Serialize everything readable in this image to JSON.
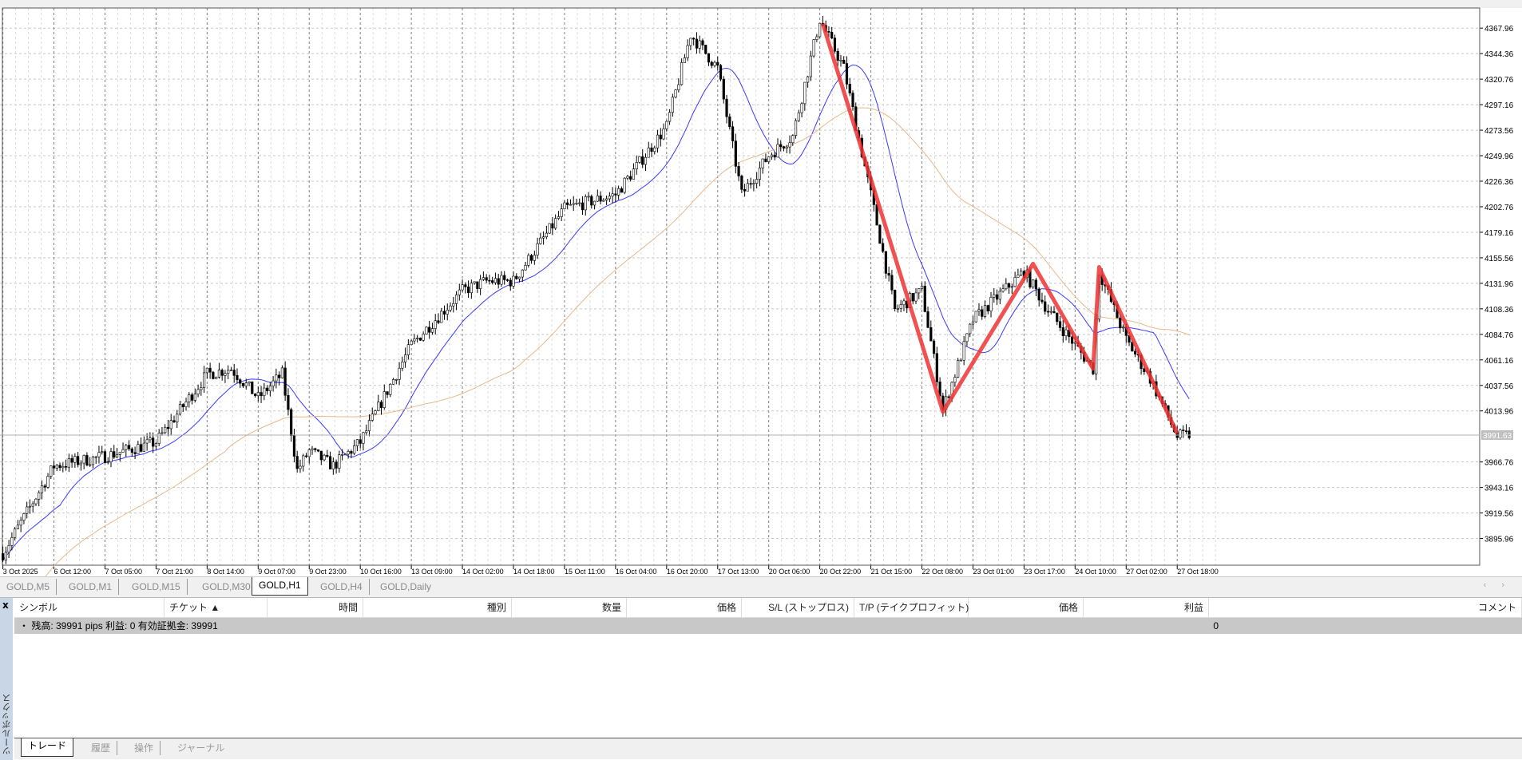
{
  "chart_tabs": [
    "GOLD,M5",
    "GOLD,M1",
    "GOLD,M15",
    "GOLD,M30",
    "GOLD,H1",
    "GOLD,H4",
    "GOLD,Daily"
  ],
  "active_chart_tab": "GOLD,H1",
  "tab_scroll": "‹ ›",
  "terminal": {
    "toolbox_label": "ツールボックス",
    "close_label": "x",
    "columns": [
      "シンボル",
      "チケット ▲",
      "時間",
      "種別",
      "数量",
      "価格",
      "S/L (ストップロス)",
      "T/P (テイクプロフィット)",
      "価格",
      "利益",
      "コメント"
    ],
    "balance_row": {
      "text": "・ 残高: 39991 pips   利益: 0   有効証拠金: 39991",
      "profit": "0"
    },
    "bottom_tabs": [
      "トレード",
      "履歴",
      "操作",
      "ジャーナル"
    ],
    "active_bottom_tab": "トレード"
  },
  "chart_data": {
    "type": "candlestick",
    "symbol": "GOLD,H1",
    "x_ticks": [
      "3 Oct 2025",
      "6 Oct 12:00",
      "7 Oct 05:00",
      "7 Oct 21:00",
      "8 Oct 14:00",
      "9 Oct 07:00",
      "9 Oct 23:00",
      "10 Oct 16:00",
      "13 Oct 09:00",
      "14 Oct 02:00",
      "14 Oct 18:00",
      "15 Oct 11:00",
      "16 Oct 04:00",
      "16 Oct 20:00",
      "17 Oct 13:00",
      "20 Oct 06:00",
      "20 Oct 22:00",
      "21 Oct 15:00",
      "22 Oct 08:00",
      "23 Oct 01:00",
      "23 Oct 17:00",
      "24 Oct 10:00",
      "27 Oct 02:00",
      "27 Oct 18:00"
    ],
    "y_ticks": [
      4367.96,
      4344.36,
      4320.76,
      4297.16,
      4273.56,
      4249.96,
      4226.36,
      4202.76,
      4179.16,
      4155.56,
      4131.96,
      4108.36,
      4084.76,
      4061.16,
      4037.56,
      4013.96,
      3966.76,
      3943.16,
      3919.56,
      3895.96
    ],
    "current_price": "3991.63",
    "approx_price_path": [
      [
        "3 Oct 2025",
        3882
      ],
      [
        "6 Oct 12:00",
        3963
      ],
      [
        "7 Oct 05:00",
        3972
      ],
      [
        "7 Oct 21:00",
        3985
      ],
      [
        "8 Oct 14:00",
        4048
      ],
      [
        "8 Oct 22:00",
        4053
      ],
      [
        "9 Oct 07:00",
        4026
      ],
      [
        "9 Oct 15:00",
        4048
      ],
      [
        "9 Oct 20:00",
        3959
      ],
      [
        "9 Oct 23:00",
        3977
      ],
      [
        "10 Oct 07:00",
        3963
      ],
      [
        "10 Oct 16:00",
        3985
      ],
      [
        "13 Oct 09:00",
        4075
      ],
      [
        "14 Oct 02:00",
        4125
      ],
      [
        "14 Oct 10:00",
        4134
      ],
      [
        "14 Oct 18:00",
        4134
      ],
      [
        "15 Oct 11:00",
        4201
      ],
      [
        "16 Oct 04:00",
        4214
      ],
      [
        "16 Oct 20:00",
        4277
      ],
      [
        "17 Oct 04:00",
        4362
      ],
      [
        "17 Oct 13:00",
        4331
      ],
      [
        "17 Oct 21:00",
        4214
      ],
      [
        "20 Oct 06:00",
        4250
      ],
      [
        "20 Oct 14:00",
        4268
      ],
      [
        "20 Oct 22:00",
        4376
      ],
      [
        "21 Oct 06:00",
        4331
      ],
      [
        "21 Oct 15:00",
        4214
      ],
      [
        "21 Oct 23:00",
        4107
      ],
      [
        "22 Oct 08:00",
        4125
      ],
      [
        "22 Oct 15:00",
        4015
      ],
      [
        "23 Oct 01:00",
        4098
      ],
      [
        "23 Oct 17:00",
        4143
      ],
      [
        "24 Oct 01:00",
        4107
      ],
      [
        "24 Oct 10:00",
        4075
      ],
      [
        "24 Oct 16:00",
        4053
      ],
      [
        "24 Oct 18:00",
        4143
      ],
      [
        "27 Oct 02:00",
        4080
      ],
      [
        "27 Oct 10:00",
        4044
      ],
      [
        "27 Oct 18:00",
        3990
      ],
      [
        "27 Oct 22:00",
        3992
      ]
    ],
    "zigzag": [
      [
        "20 Oct 23:00",
        4372
      ],
      [
        "22 Oct 15:00",
        4013
      ],
      [
        "23 Oct 20:00",
        4150
      ],
      [
        "24 Oct 16:00",
        4053
      ],
      [
        "24 Oct 18:00",
        4147
      ],
      [
        "27 Oct 18:00",
        3993
      ]
    ],
    "moving_averages": [
      {
        "period_hint": "fast",
        "color": "#3a3aff"
      },
      {
        "period_hint": "slow",
        "color": "#e8b88a"
      }
    ],
    "colors": {
      "candle": "#000000",
      "zigzag": "#ee3333",
      "grid": "#c0c0c0",
      "current_price_line": "#b0b0b0"
    },
    "grid": true
  }
}
